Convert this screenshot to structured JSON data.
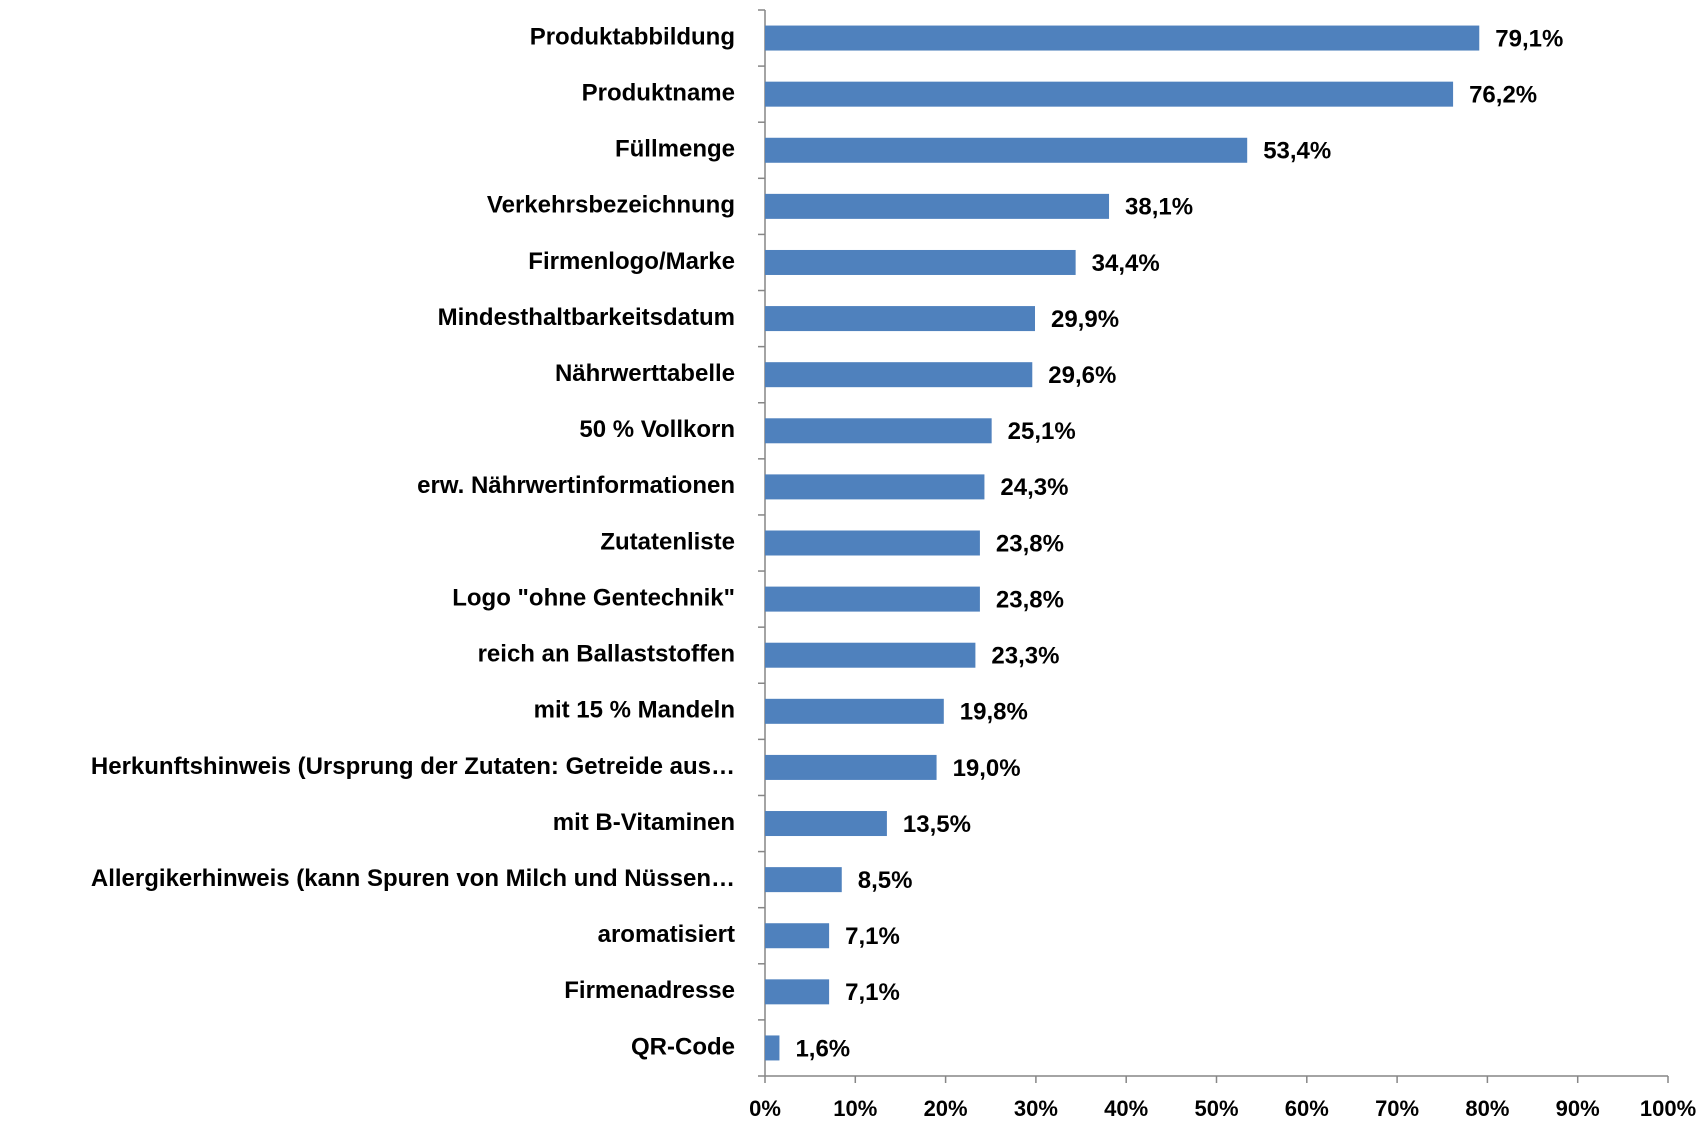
{
  "chart_data": {
    "type": "bar",
    "orientation": "horizontal",
    "categories": [
      "Produktabbildung",
      "Produktname",
      "Füllmenge",
      "Verkehrsbezeichnung",
      "Firmenlogo/Marke",
      "Mindesthaltbarkeitsdatum",
      "Nährwerttabelle",
      "50 % Vollkorn",
      "erw. Nährwertinformationen",
      "Zutatenliste",
      "Logo \"ohne Gentechnik\"",
      "reich an Ballaststoffen",
      "mit 15 % Mandeln",
      "Herkunftshinweis (Ursprung der Zutaten: Getreide aus…",
      "mit B-Vitaminen",
      "Allergikerhinweis (kann Spuren von Milch und Nüssen…",
      "aromatisiert",
      "Firmenadresse",
      "QR-Code"
    ],
    "values": [
      79.1,
      76.2,
      53.4,
      38.1,
      34.4,
      29.9,
      29.6,
      25.1,
      24.3,
      23.8,
      23.8,
      23.3,
      19.8,
      19.0,
      13.5,
      8.5,
      7.1,
      7.1,
      1.6
    ],
    "value_labels": [
      "79,1%",
      "76,2%",
      "53,4%",
      "38,1%",
      "34,4%",
      "29,9%",
      "29,6%",
      "25,1%",
      "24,3%",
      "23,8%",
      "23,8%",
      "23,3%",
      "19,8%",
      "19,0%",
      "13,5%",
      "8,5%",
      "7,1%",
      "7,1%",
      "1,6%"
    ],
    "color": "#4f81bd",
    "xlim": [
      0,
      100
    ],
    "xticks": [
      {
        "value": 0,
        "label": "0%"
      },
      {
        "value": 10,
        "label": "10%"
      },
      {
        "value": 20,
        "label": "20%"
      },
      {
        "value": 30,
        "label": "30%"
      },
      {
        "value": 40,
        "label": "40%"
      },
      {
        "value": 50,
        "label": "50%"
      },
      {
        "value": 60,
        "label": "60%"
      },
      {
        "value": 70,
        "label": "70%"
      },
      {
        "value": 80,
        "label": "80%"
      },
      {
        "value": 90,
        "label": "90%"
      },
      {
        "value": 100,
        "label": "100%"
      }
    ],
    "grid": false
  }
}
